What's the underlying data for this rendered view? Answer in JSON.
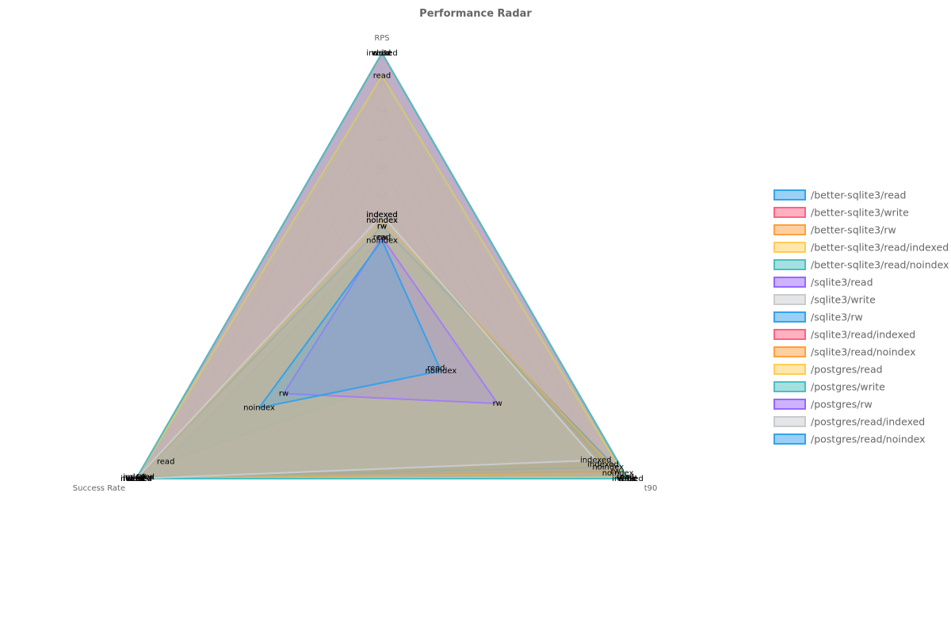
{
  "chart_data": {
    "type": "radar",
    "title": "Performance Radar",
    "axes": [
      "RPS",
      "t90",
      "Success Rate"
    ],
    "range": [
      0,
      1
    ],
    "ticks": [
      "0.1",
      "0.2",
      "0.3",
      "0.4",
      "0.5",
      "0.6",
      "0.7",
      "0.8",
      "0.9",
      "1"
    ],
    "grid": true,
    "legend_position": "right",
    "series": [
      {
        "name": "/better-sqlite3/read",
        "label": "read",
        "values": [
          0.35,
          0.22,
          0.88
        ],
        "color": "#36a2eb"
      },
      {
        "name": "/better-sqlite3/write",
        "label": "write",
        "values": [
          1.0,
          1.0,
          1.0
        ],
        "color": "#ff6384"
      },
      {
        "name": "/better-sqlite3/rw",
        "label": "rw",
        "values": [
          0.39,
          0.95,
          0.98
        ],
        "color": "#ff9f40"
      },
      {
        "name": "/better-sqlite3/read/indexed",
        "label": "indexed",
        "values": [
          0.43,
          0.9,
          0.99
        ],
        "color": "#ffcd56"
      },
      {
        "name": "/better-sqlite3/read/noindex",
        "label": "noindex",
        "values": [
          0.41,
          0.92,
          0.99
        ],
        "color": "#4bc0c0"
      },
      {
        "name": "/sqlite3/read",
        "label": "read",
        "values": [
          1.0,
          1.0,
          1.0
        ],
        "color": "#9966ff"
      },
      {
        "name": "/sqlite3/write",
        "label": "write",
        "values": [
          1.0,
          1.0,
          1.0
        ],
        "color": "#c9cbcf"
      },
      {
        "name": "/sqlite3/rw",
        "label": "rw",
        "values": [
          0.39,
          0.99,
          1.0
        ],
        "color": "#36a2eb"
      },
      {
        "name": "/sqlite3/read/indexed",
        "label": "indexed",
        "values": [
          1.0,
          1.0,
          1.0
        ],
        "color": "#ff6384"
      },
      {
        "name": "/sqlite3/read/noindex",
        "label": "noindex",
        "values": [
          0.41,
          0.96,
          1.0
        ],
        "color": "#ff9f40"
      },
      {
        "name": "/postgres/read",
        "label": "read",
        "values": [
          0.92,
          0.99,
          1.0
        ],
        "color": "#ffcd56"
      },
      {
        "name": "/postgres/write",
        "label": "write",
        "values": [
          1.0,
          1.0,
          1.0
        ],
        "color": "#4bc0c0"
      },
      {
        "name": "/postgres/rw",
        "label": "rw",
        "values": [
          0.35,
          0.47,
          0.4
        ],
        "color": "#9966ff"
      },
      {
        "name": "/postgres/read/indexed",
        "label": "indexed",
        "values": [
          0.43,
          0.87,
          1.0
        ],
        "color": "#c9cbcf"
      },
      {
        "name": "/postgres/read/noindex",
        "label": "noindex",
        "values": [
          0.34,
          0.24,
          0.5
        ],
        "color": "#36a2eb"
      }
    ]
  }
}
